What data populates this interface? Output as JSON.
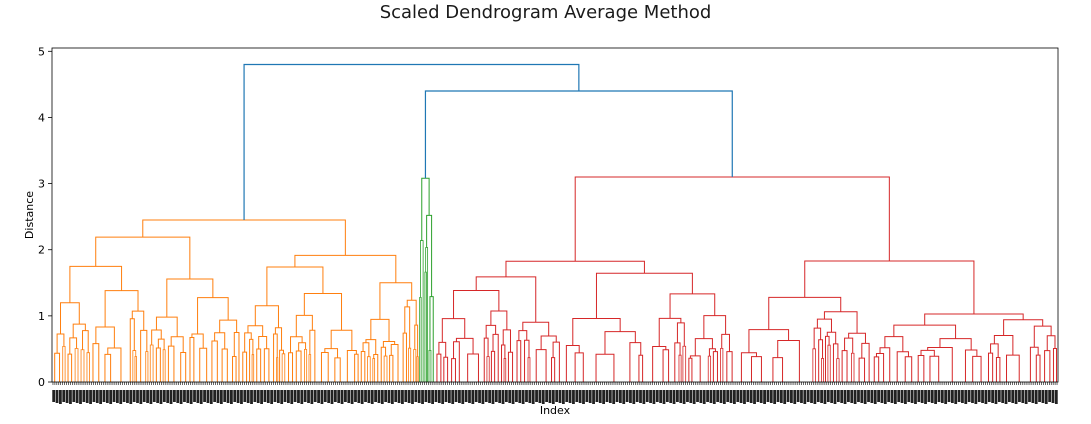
{
  "chart_data": {
    "type": "dendrogram",
    "title": "Scaled Dendrogram Average Method",
    "xlabel": "Index",
    "ylabel": "Distance",
    "ylim": [
      0,
      5.05
    ],
    "yticks": [
      0,
      1,
      2,
      3,
      4,
      5
    ],
    "grid": false,
    "legend": "none",
    "colors": {
      "above_threshold": "#1f77b4",
      "cluster_1": "#ff7f0e",
      "cluster_2": "#2ca02c",
      "cluster_3": "#d62728"
    },
    "clusters": [
      {
        "color_key": "cluster_1",
        "leaf_share": 0.365,
        "top_merge_height": 2.45
      },
      {
        "color_key": "cluster_2",
        "leaf_share": 0.015,
        "top_merge_height": 3.08
      },
      {
        "color_key": "cluster_3",
        "leaf_share": 0.62,
        "top_merge_height": 3.1
      }
    ],
    "top_links": [
      {
        "height": 4.4,
        "joins": [
          "cluster_2",
          "cluster_3"
        ]
      },
      {
        "height": 4.8,
        "joins": [
          "cluster_1",
          "cluster_2+cluster_3"
        ]
      }
    ]
  }
}
